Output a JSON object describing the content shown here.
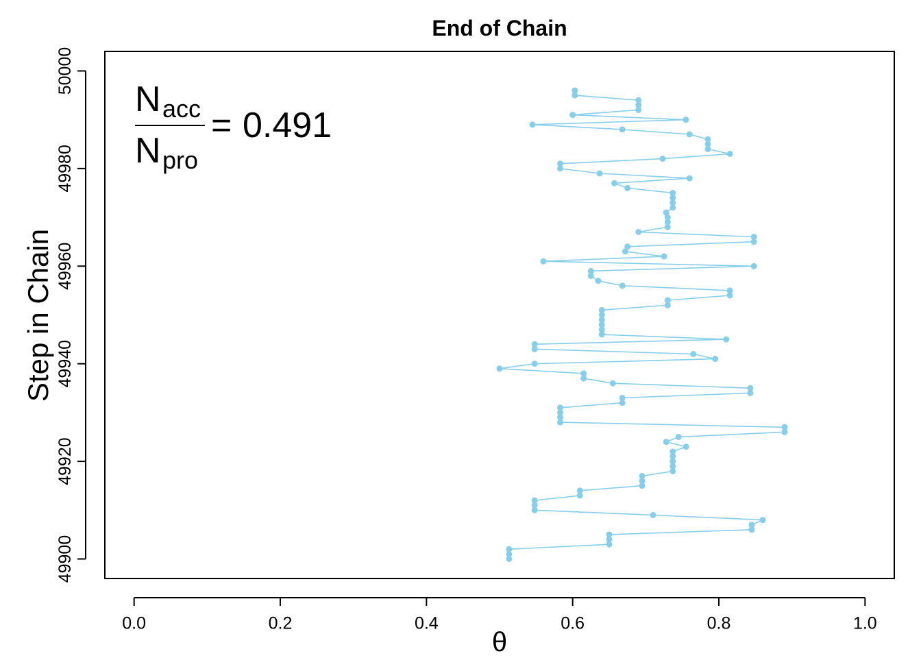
{
  "chart_data": {
    "type": "line",
    "title": "End of Chain",
    "xlabel": "θ",
    "ylabel": "Step in Chain",
    "xlim": [
      -0.04,
      1.04
    ],
    "ylim": [
      49896,
      50004
    ],
    "x_ticks": [
      "0.0",
      "0.2",
      "0.4",
      "0.6",
      "0.8",
      "1.0"
    ],
    "x_tick_values": [
      0.0,
      0.2,
      0.4,
      0.6,
      0.8,
      1.0
    ],
    "y_ticks": [
      "49900",
      "49920",
      "49940",
      "49960",
      "49980",
      "50000"
    ],
    "y_tick_values": [
      49900,
      49920,
      49940,
      49960,
      49980,
      50000
    ],
    "grid": false,
    "series_color": "#87CEEB",
    "annotation": {
      "numerator_base": "N",
      "numerator_sub": "acc",
      "denominator_base": "N",
      "denominator_sub": "pro",
      "equals": "=",
      "value": "0.491"
    },
    "series": [
      {
        "x": [
          0.513,
          0.513,
          0.513,
          0.65,
          0.65,
          0.65,
          0.845,
          0.845,
          0.86,
          0.71,
          0.548,
          0.548,
          0.548,
          0.61,
          0.61,
          0.695,
          0.695,
          0.695,
          0.737,
          0.737,
          0.737,
          0.737,
          0.737,
          0.755,
          0.728,
          0.745,
          0.89,
          0.89,
          0.583,
          0.583,
          0.583,
          0.583,
          0.668,
          0.668,
          0.843,
          0.843,
          0.655,
          0.615,
          0.615,
          0.5,
          0.548,
          0.795,
          0.765,
          0.548,
          0.548,
          0.81,
          0.64,
          0.64,
          0.64,
          0.64,
          0.64,
          0.64,
          0.73,
          0.73,
          0.815,
          0.815,
          0.668,
          0.635,
          0.625,
          0.625,
          0.848,
          0.56,
          0.725,
          0.672,
          0.675,
          0.848,
          0.848,
          0.69,
          0.73,
          0.73,
          0.73,
          0.728,
          0.737,
          0.737,
          0.737,
          0.737,
          0.675,
          0.657,
          0.76,
          0.637,
          0.583,
          0.583,
          0.723,
          0.815,
          0.785,
          0.785,
          0.785,
          0.76,
          0.668,
          0.545,
          0.755,
          0.6,
          0.69,
          0.69,
          0.69,
          0.603,
          0.603
        ],
        "y": [
          49900,
          49901,
          49902,
          49903,
          49904,
          49905,
          49906,
          49907,
          49908,
          49909,
          49910,
          49911,
          49912,
          49913,
          49914,
          49915,
          49916,
          49917,
          49918,
          49919,
          49920,
          49921,
          49922,
          49923,
          49924,
          49925,
          49926,
          49927,
          49928,
          49929,
          49930,
          49931,
          49932,
          49933,
          49934,
          49935,
          49936,
          49937,
          49938,
          49939,
          49940,
          49941,
          49942,
          49943,
          49944,
          49945,
          49946,
          49947,
          49948,
          49949,
          49950,
          49951,
          49952,
          49953,
          49954,
          49955,
          49956,
          49957,
          49958,
          49959,
          49960,
          49961,
          49962,
          49963,
          49964,
          49965,
          49966,
          49967,
          49968,
          49969,
          49970,
          49971,
          49972,
          49973,
          49974,
          49975,
          49976,
          49977,
          49978,
          49979,
          49980,
          49981,
          49982,
          49983,
          49984,
          49985,
          49986,
          49987,
          49988,
          49989,
          49990,
          49991,
          49992,
          49993,
          49994,
          49995,
          49996
        ]
      }
    ]
  }
}
